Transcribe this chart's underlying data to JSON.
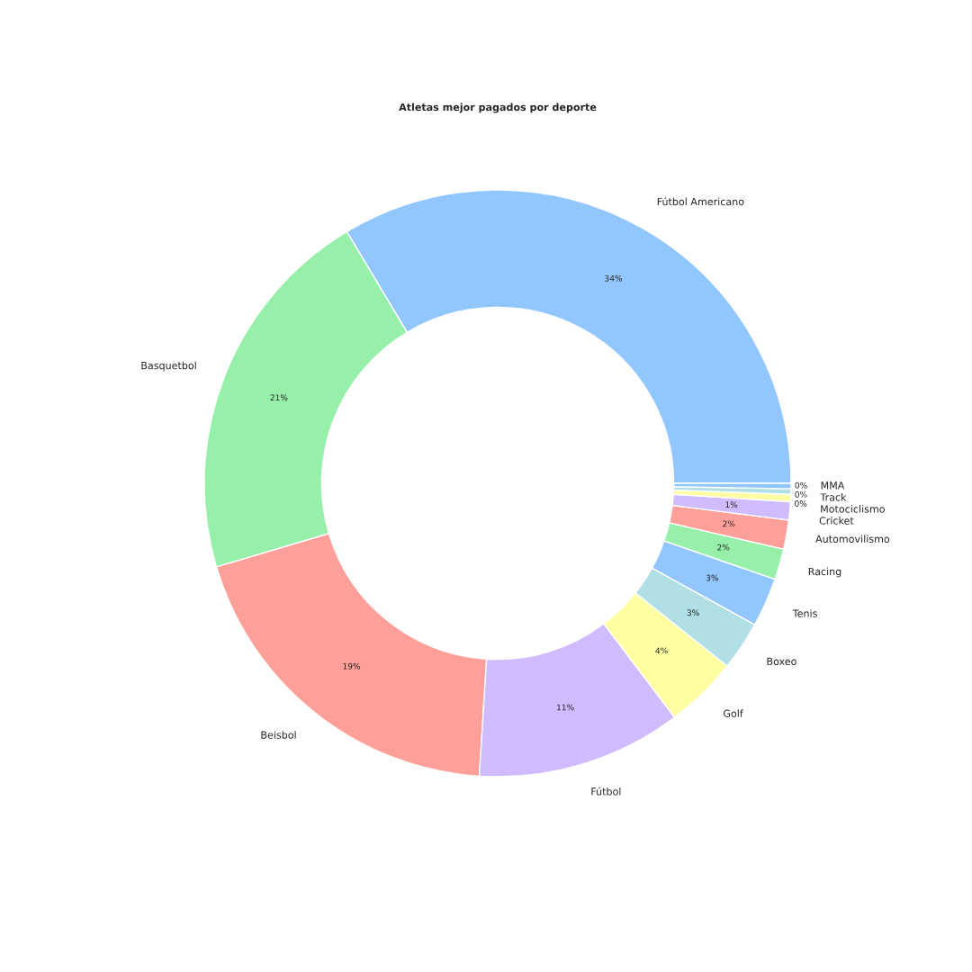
{
  "chart_data": {
    "type": "donut",
    "title": "Atletas mejor pagados por deporte",
    "categories": [
      "Fútbol Americano",
      "Basquetbol",
      "Beisbol",
      "Fútbol",
      "Golf",
      "Boxeo",
      "Tenis",
      "Racing",
      "Automovilismo",
      "Cricket",
      "Motociclismo",
      "Track",
      "MMA"
    ],
    "values": [
      33.6,
      21.0,
      19.4,
      11.3,
      4.0,
      2.7,
      2.7,
      1.7,
      1.6,
      1.0,
      0.4,
      0.3,
      0.3
    ],
    "colors": [
      "#92c6ff",
      "#97f0aa",
      "#ff9f9a",
      "#d0bbff",
      "#fffea3",
      "#b0e0e6",
      "#92c6ff",
      "#97f0aa",
      "#ff9f9a",
      "#d0bbff",
      "#fffea3",
      "#b0e0e6",
      "#92c6ff"
    ],
    "value_labels": [
      "34%",
      "21%",
      "19%",
      "11%",
      "4%",
      "3%",
      "3%",
      "2%",
      "2%",
      "1%",
      "0%",
      "0%",
      "0%"
    ]
  }
}
